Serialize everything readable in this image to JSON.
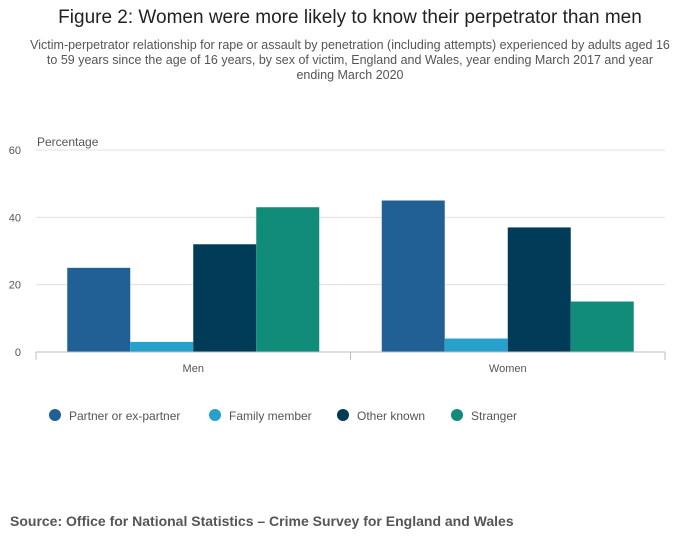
{
  "title": "Figure 2: Women were more likely to know their perpetrator than men",
  "subtitle": "Victim-perpetrator relationship for rape or assault by penetration (including attempts) experienced by adults aged 16 to 59 years since the age of 16 years, by sex of victim, England and Wales, year ending March 2017 and year ending March 2020",
  "source": "Source: Office for National Statistics – Crime Survey for England and Wales",
  "chart_data": {
    "type": "bar",
    "title": "Figure 2: Women were more likely to know their perpetrator than men",
    "ylabel": "Percentage",
    "xlabel": "",
    "categories": [
      "Men",
      "Women"
    ],
    "ylim": [
      0,
      60
    ],
    "yticks": [
      0,
      20,
      40,
      60
    ],
    "grid": true,
    "legend": "bottom",
    "series": [
      {
        "name": "Partner or ex-partner",
        "color": "#206095",
        "values": [
          25,
          45
        ]
      },
      {
        "name": "Family member",
        "color": "#27a0cc",
        "values": [
          3,
          4
        ]
      },
      {
        "name": "Other known",
        "color": "#003c57",
        "values": [
          32,
          37
        ]
      },
      {
        "name": "Stranger",
        "color": "#118c7b",
        "values": [
          43,
          15
        ]
      }
    ]
  }
}
